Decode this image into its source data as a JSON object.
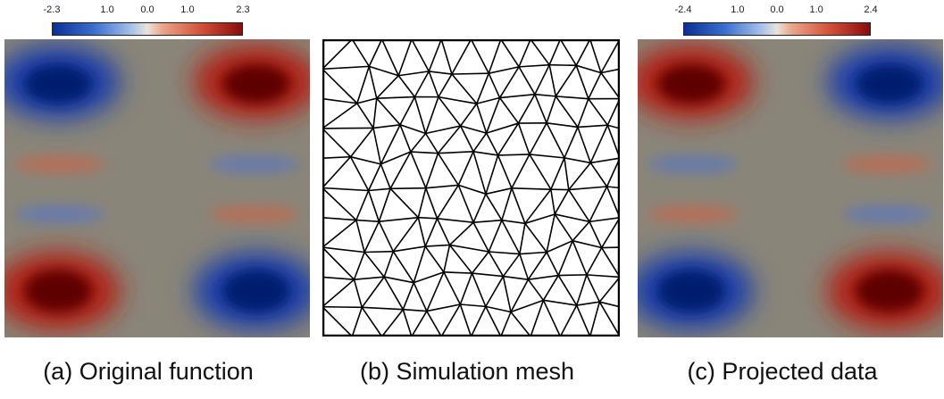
{
  "panels": [
    {
      "caption": "(a) Original function",
      "colorbar": {
        "tick_labels": [
          "-2.3",
          "1.0",
          "0.0",
          "1.0",
          "2.3"
        ],
        "min": -2.3,
        "max": 2.3
      },
      "colors": {
        "negative": "#0b2a8c",
        "neutral": "#8a8579",
        "positive": "#8a1010"
      },
      "field_sign_top": -1
    },
    {
      "caption": "(b) Simulation mesh"
    },
    {
      "caption": "(c) Projected data",
      "colorbar": {
        "tick_labels": [
          "-2.4",
          "1.0",
          "0.0",
          "1.0",
          "2.4"
        ],
        "min": -2.4,
        "max": 2.4
      },
      "colors": {
        "negative": "#0b2a8c",
        "neutral": "#8a8579",
        "positive": "#8a1010"
      },
      "field_sign_top": 1
    }
  ]
}
